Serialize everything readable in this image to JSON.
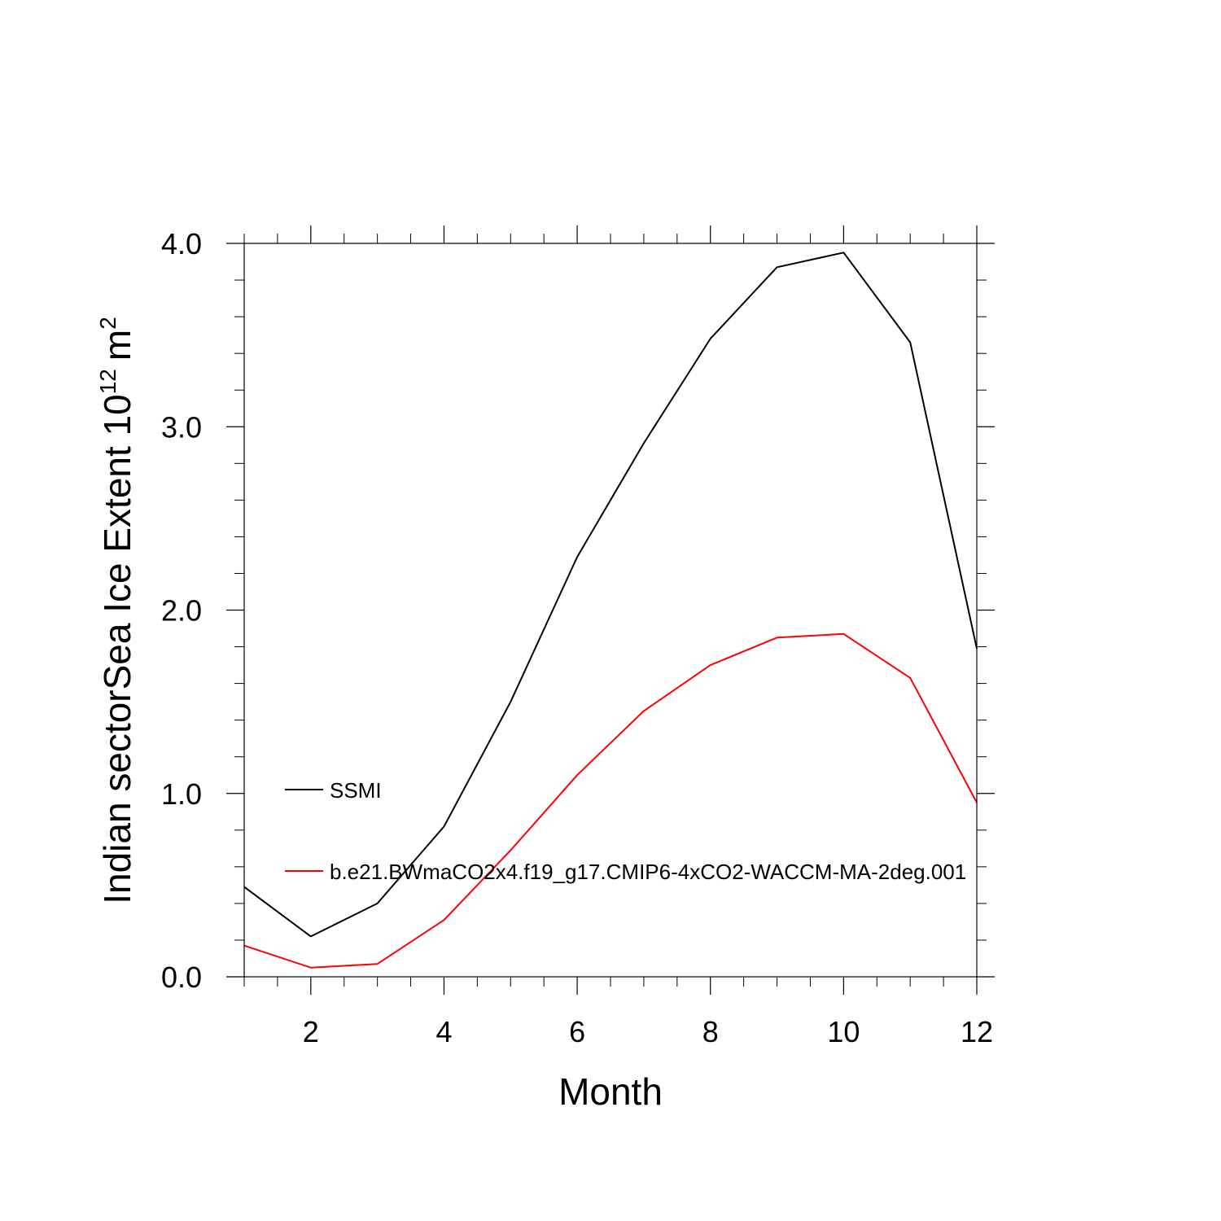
{
  "chart_data": {
    "type": "line",
    "title": "",
    "xlabel": "Month",
    "ylabel": {
      "main": "Indian sectorSea Ice Extent 10",
      "exponent": "12",
      "unit": "m",
      "unit_exponent": "2"
    },
    "xlim": [
      1,
      12
    ],
    "ylim": [
      0,
      4
    ],
    "x": [
      1,
      2,
      3,
      4,
      5,
      6,
      7,
      8,
      9,
      10,
      11,
      12
    ],
    "x_ticks": [
      2,
      4,
      6,
      8,
      10,
      12
    ],
    "x_tick_labels": [
      "2",
      "4",
      "6",
      "8",
      "10",
      "12"
    ],
    "y_ticks": [
      0,
      1,
      2,
      3,
      4
    ],
    "y_tick_labels": [
      "0.0",
      "1.0",
      "2.0",
      "3.0",
      "4.0"
    ],
    "grid": false,
    "legend_position": "center-left",
    "series": [
      {
        "name": "SSMI",
        "color": "#000000",
        "values": [
          0.49,
          0.22,
          0.4,
          0.82,
          1.5,
          2.29,
          2.91,
          3.48,
          3.87,
          3.95,
          3.46,
          1.79
        ]
      },
      {
        "name": "b.e21.BWmaCO2x4.f19_g17.CMIP6-4xCO2-WACCM-MA-2deg.001",
        "color": "#ff0000",
        "values": [
          0.17,
          0.05,
          0.07,
          0.31,
          0.69,
          1.1,
          1.45,
          1.7,
          1.85,
          1.87,
          1.63,
          0.95
        ]
      }
    ]
  }
}
